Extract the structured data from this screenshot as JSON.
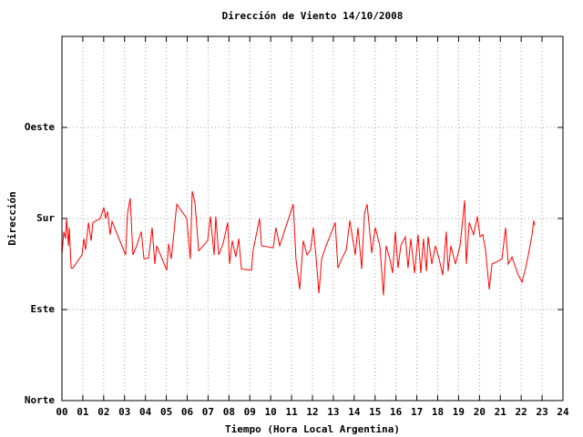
{
  "chart_data": {
    "type": "line",
    "title": "Dirección de Viento 14/10/2008",
    "x_label": "Tiempo (Hora Local Argentina)",
    "y_label": "Dirección",
    "xlim": [
      0,
      24
    ],
    "xticks": [
      {
        "value": 0,
        "label": "00"
      },
      {
        "value": 1,
        "label": "01"
      },
      {
        "value": 2,
        "label": "02"
      },
      {
        "value": 3,
        "label": "03"
      },
      {
        "value": 4,
        "label": "04"
      },
      {
        "value": 5,
        "label": "05"
      },
      {
        "value": 6,
        "label": "06"
      },
      {
        "value": 7,
        "label": "07"
      },
      {
        "value": 8,
        "label": "08"
      },
      {
        "value": 9,
        "label": "09"
      },
      10,
      11,
      12,
      13,
      14,
      15,
      16,
      17,
      18,
      19,
      20,
      21,
      22,
      23,
      24
    ],
    "ylim": [
      0,
      360
    ],
    "yticks": [
      {
        "value": 0,
        "label": "Norte"
      },
      {
        "value": 90,
        "label": "Este"
      },
      {
        "value": 180,
        "label": "Sur"
      },
      {
        "value": 270,
        "label": "Oeste"
      }
    ],
    "grid": true,
    "series": [
      {
        "color": "#ff0000",
        "x": [
          0.0,
          0.09,
          0.17,
          0.22,
          0.31,
          0.35,
          0.44,
          0.52,
          0.96,
          1.05,
          1.13,
          1.27,
          1.4,
          1.48,
          1.83,
          2.01,
          2.09,
          2.18,
          2.31,
          2.4,
          3.05,
          3.14,
          3.27,
          3.4,
          3.58,
          3.8,
          3.93,
          4.15,
          4.32,
          4.45,
          4.54,
          5.02,
          5.11,
          5.24,
          5.5,
          5.98,
          6.15,
          6.24,
          6.37,
          6.55,
          6.98,
          7.11,
          7.29,
          7.37,
          7.51,
          7.72,
          7.94,
          8.03,
          8.16,
          8.33,
          8.47,
          8.6,
          9.08,
          9.16,
          9.47,
          9.56,
          10.12,
          10.25,
          10.43,
          10.65,
          11.08,
          11.21,
          11.39,
          11.56,
          11.74,
          11.91,
          12.04,
          12.18,
          12.31,
          12.44,
          12.65,
          12.83,
          13.09,
          13.22,
          13.4,
          13.62,
          13.79,
          14.05,
          14.18,
          14.36,
          14.49,
          14.62,
          14.84,
          15.01,
          15.23,
          15.4,
          15.53,
          15.71,
          15.84,
          15.97,
          16.1,
          16.23,
          16.45,
          16.58,
          16.71,
          16.89,
          17.06,
          17.19,
          17.32,
          17.46,
          17.54,
          17.72,
          17.89,
          18.07,
          18.24,
          18.41,
          18.5,
          18.63,
          18.85,
          19.07,
          19.16,
          19.29,
          19.37,
          19.51,
          19.72,
          19.9,
          20.03,
          20.16,
          20.29,
          20.47,
          20.6,
          20.81,
          21.08,
          21.25,
          21.38,
          21.56,
          21.82,
          22.04,
          22.21,
          22.34,
          22.52,
          22.6,
          22.65
        ],
        "values": [
          144,
          167,
          160,
          180,
          153,
          171,
          131,
          131,
          144,
          160,
          149,
          176,
          158,
          176,
          180,
          191,
          180,
          187,
          164,
          177,
          144,
          185,
          200,
          144,
          153,
          167,
          140,
          141,
          171,
          135,
          153,
          129,
          155,
          140,
          194,
          180,
          140,
          207,
          196,
          148,
          158,
          182,
          144,
          182,
          144,
          155,
          176,
          135,
          158,
          142,
          160,
          130,
          129,
          149,
          180,
          153,
          151,
          171,
          153,
          167,
          194,
          140,
          110,
          158,
          144,
          149,
          171,
          140,
          106,
          140,
          153,
          162,
          176,
          131,
          140,
          149,
          178,
          144,
          171,
          130,
          185,
          194,
          146,
          171,
          153,
          104,
          153,
          140,
          126,
          167,
          131,
          153,
          162,
          131,
          160,
          126,
          164,
          126,
          160,
          128,
          162,
          135,
          153,
          140,
          124,
          167,
          128,
          153,
          135,
          153,
          171,
          198,
          135,
          176,
          164,
          182,
          162,
          164,
          149,
          110,
          135,
          137,
          140,
          171,
          135,
          142,
          126,
          117,
          131,
          144,
          164,
          178,
          173
        ]
      }
    ]
  }
}
